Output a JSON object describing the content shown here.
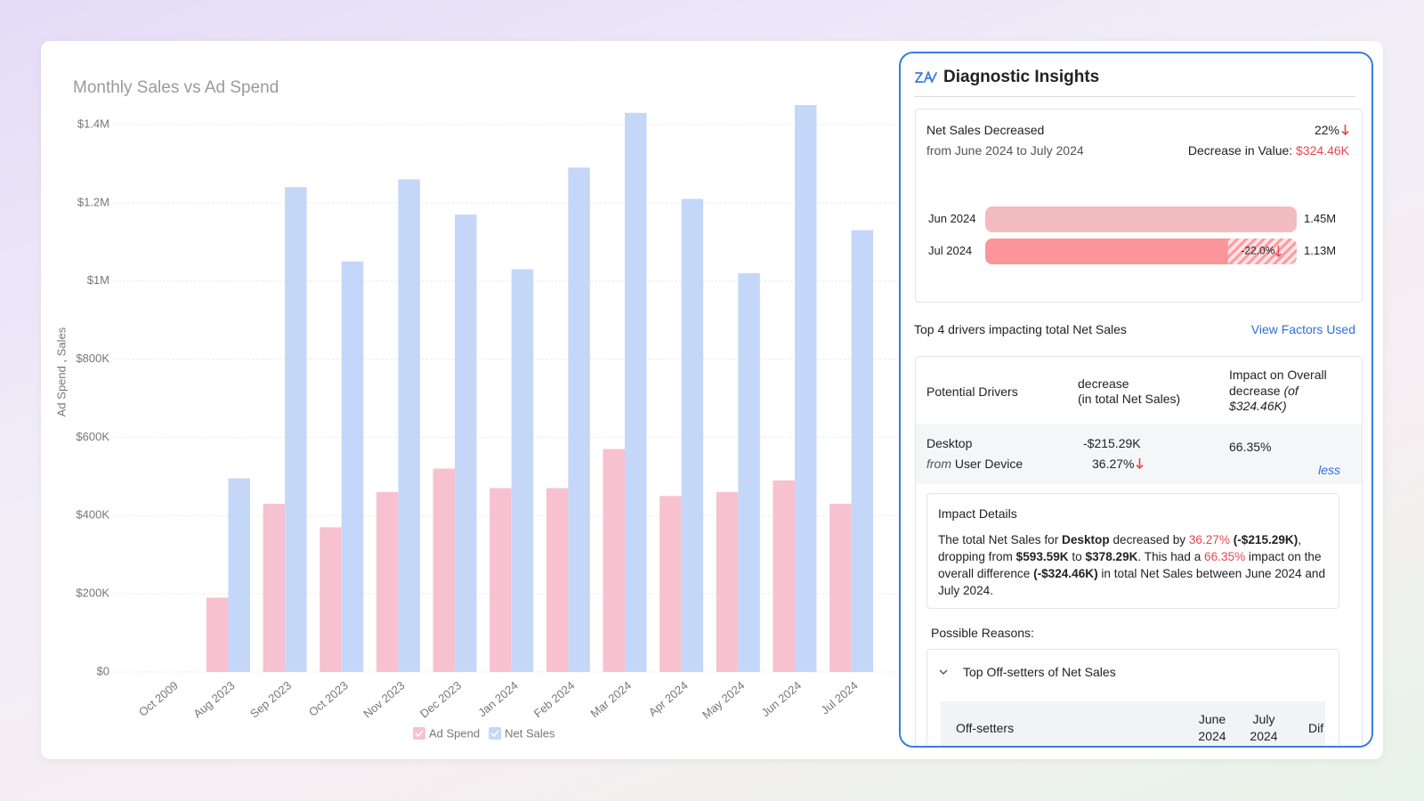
{
  "chart_data": {
    "type": "bar",
    "title": "Monthly Sales vs Ad Spend",
    "ylabel": "Ad Spend , Sales",
    "categories": [
      "Oct 2009",
      "Aug 2023",
      "Sep 2023",
      "Oct 2023",
      "Nov 2023",
      "Dec 2023",
      "Jan 2024",
      "Feb 2024",
      "Mar 2024",
      "Apr 2024",
      "May 2024",
      "Jun 2024",
      "Jul 2024"
    ],
    "series": [
      {
        "name": "Ad Spend",
        "color": "#f7c1cf",
        "values": [
          null,
          190000,
          430000,
          370000,
          460000,
          520000,
          470000,
          470000,
          570000,
          450000,
          460000,
          490000,
          430000
        ]
      },
      {
        "name": "Net Sales",
        "color": "#c5d7f8",
        "values": [
          null,
          495000,
          1240000,
          1050000,
          1260000,
          1170000,
          1030000,
          1290000,
          1430000,
          1210000,
          1020000,
          1450000,
          1130000
        ]
      }
    ],
    "ylim": [
      0,
      1400000
    ],
    "yticks": [
      {
        "value": 0,
        "label": "$0"
      },
      {
        "value": 200000,
        "label": "$200K"
      },
      {
        "value": 400000,
        "label": "$400K"
      },
      {
        "value": 600000,
        "label": "$600K"
      },
      {
        "value": 800000,
        "label": "$800K"
      },
      {
        "value": 1000000,
        "label": "$1M"
      },
      {
        "value": 1200000,
        "label": "$1.2M"
      },
      {
        "value": 1400000,
        "label": "$1.4M"
      }
    ],
    "grid": true,
    "legend": "bottom"
  },
  "panel": {
    "title": "Diagnostic Insights",
    "summary": {
      "heading": "Net Sales Decreased",
      "change": "22%",
      "period": "from June 2024 to July 2024",
      "decrease_label": "Decrease in Value:",
      "decrease_value": "$324.46K"
    },
    "comparison": {
      "categories": [
        "Jun 2024",
        "Jul 2024"
      ],
      "values": [
        1450000,
        1130000
      ],
      "value_labels": [
        "1.45M",
        "1.13M"
      ],
      "colors": [
        "#f2bcc0",
        "#fc949a"
      ],
      "change_label": "-22.0%"
    },
    "drivers_heading": "Top 4 drivers impacting total Net Sales",
    "view_factors": "View Factors Used",
    "drivers_table": {
      "headers": [
        "Potential Drivers",
        "decrease",
        "(in total Net Sales)",
        "Impact on Overall",
        "decrease",
        "(of",
        "$324.46K)"
      ],
      "row": {
        "driver": "Desktop",
        "source_prefix": "from",
        "source": "User Device",
        "value": "-$215.29K",
        "change": "36.27%",
        "impact": "66.35%",
        "toggle": "less"
      }
    },
    "impact_details": {
      "title": "Impact Details",
      "text": [
        {
          "text": "The total Net Sales for "
        },
        {
          "text": "Desktop",
          "style": "bold"
        },
        {
          "text": " decreased by "
        },
        {
          "text": "36.27%",
          "style": "red"
        },
        {
          "text": " "
        },
        {
          "text": "(-$215.29K)",
          "style": "bold"
        },
        {
          "text": ", dropping from "
        },
        {
          "text": "$593.59K",
          "style": "bold"
        },
        {
          "text": " to "
        },
        {
          "text": "$378.29K",
          "style": "bold"
        },
        {
          "text": ". This had a "
        },
        {
          "text": "66.35%",
          "style": "red"
        },
        {
          "text": " impact on the overall difference "
        },
        {
          "text": "(-$324.46K)",
          "style": "bold"
        },
        {
          "text": " in total Net Sales between June 2024 and July 2024."
        }
      ]
    },
    "possible_reasons": {
      "title": "Possible Reasons:",
      "group": "Top Off-setters of Net Sales",
      "headers": [
        "Off-setters",
        "June",
        "2024",
        "July",
        "2024",
        "Dif"
      ]
    }
  }
}
